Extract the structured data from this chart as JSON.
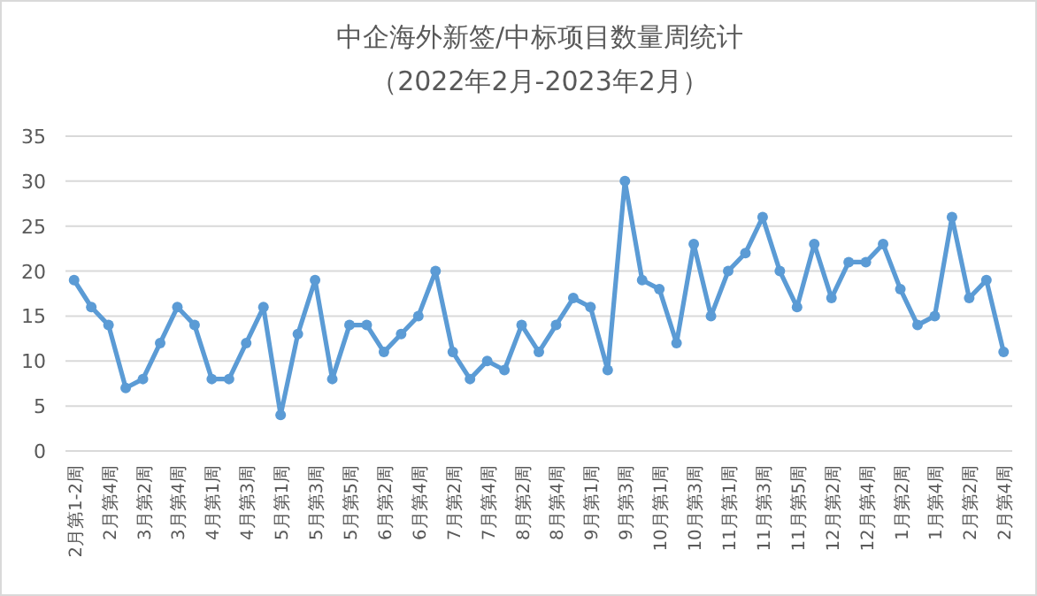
{
  "chart_data": {
    "type": "line",
    "title": "中企海外新签/中标项目数量周统计",
    "subtitle": "（2022年2月-2023年2月）",
    "categories": [
      "2月第1-2周",
      null,
      "2月第4周",
      null,
      "3月第2周",
      null,
      "3月第4周",
      null,
      "4月第1周",
      null,
      "4月第3周",
      null,
      "5月第1周",
      null,
      "5月第3周",
      null,
      "5月第5周",
      null,
      "6月第2周",
      null,
      "6月第4周",
      null,
      "7月第2周",
      null,
      "7月第4周",
      null,
      "8月第2周",
      null,
      "8月第4周",
      null,
      "9月第1周",
      null,
      "9月第3周",
      null,
      "10月第1周",
      null,
      "10月第3周",
      null,
      "11月第1周",
      null,
      "11月第3周",
      null,
      "11月第5周",
      null,
      "12月第2周",
      null,
      "12月第4周",
      null,
      "1月第2周",
      null,
      "1月第4周",
      null,
      "2月第2周",
      null,
      "2月第4周"
    ],
    "series": [
      {
        "color": "#5b9bd5",
        "values": [
          19,
          16,
          14,
          7,
          8,
          12,
          16,
          14,
          8,
          8,
          12,
          16,
          4,
          13,
          19,
          8,
          14,
          14,
          11,
          13,
          15,
          20,
          11,
          8,
          10,
          9,
          14,
          11,
          14,
          17,
          16,
          9,
          30,
          19,
          18,
          12,
          23,
          15,
          20,
          22,
          26,
          20,
          16,
          23,
          17,
          21,
          21,
          23,
          18,
          14,
          15,
          26,
          17,
          19,
          11
        ]
      }
    ],
    "ylim": [
      0,
      35
    ],
    "yticks": [
      0,
      5,
      10,
      15,
      20,
      25,
      30,
      35
    ],
    "grid": "y",
    "marker": "circle",
    "line_style": "solid"
  }
}
